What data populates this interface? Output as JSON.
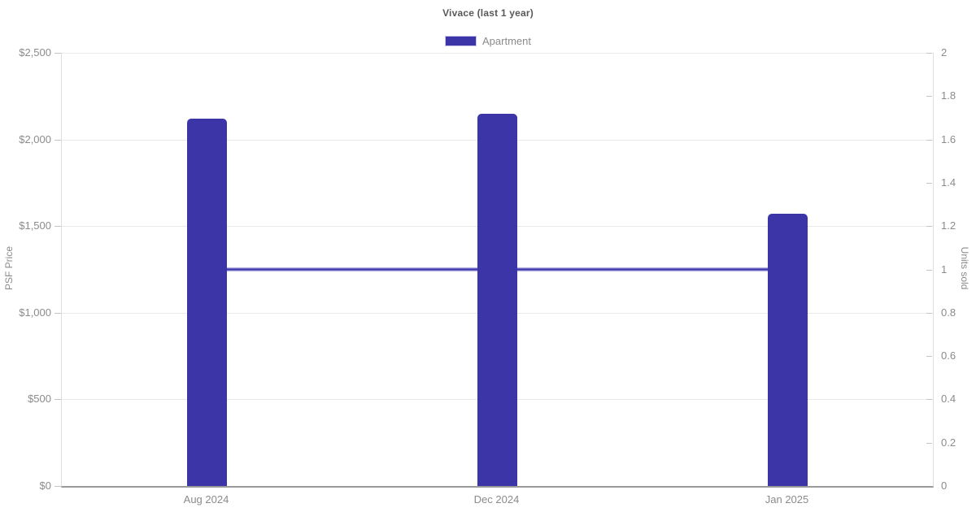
{
  "title": "Vivace (last 1 year)",
  "legend": {
    "items": [
      {
        "label": "Apartment",
        "color": "#3b35a8"
      }
    ]
  },
  "chart_data": {
    "type": "bar",
    "title": "Vivace (last 1 year)",
    "categories": [
      "Aug 2024",
      "Dec 2024",
      "Jan 2025"
    ],
    "series": [
      {
        "name": "Apartment",
        "type": "bar",
        "axis": "left",
        "values": [
          2120,
          2148,
          1572
        ]
      },
      {
        "name": "Units sold",
        "type": "line",
        "axis": "right",
        "values": [
          1,
          1,
          1
        ]
      }
    ],
    "y_left": {
      "label": "PSF Price",
      "min": 0,
      "max": 2500,
      "step": 500,
      "ticks": [
        "$0",
        "$500",
        "$1,000",
        "$1,500",
        "$2,000",
        "$2,500"
      ]
    },
    "y_right": {
      "label": "Units sold",
      "min": 0,
      "max": 2,
      "step": 0.2,
      "ticks": [
        "0",
        "0.2",
        "0.4",
        "0.6",
        "0.8",
        "1",
        "1.2",
        "1.4",
        "1.6",
        "1.8",
        "2"
      ]
    },
    "grid": true,
    "legend_position": "top"
  },
  "colors": {
    "bar": "#3b35a8",
    "line": "#3b35a8",
    "line_halo": "#9a95da",
    "grid": "#e9e9e9",
    "axis_line": "#dedede",
    "axis_bottom": "#999999",
    "tick": "#c4c4c4",
    "text_muted": "#8b8b8b",
    "title_text": "#57585a",
    "background": "#ffffff"
  }
}
